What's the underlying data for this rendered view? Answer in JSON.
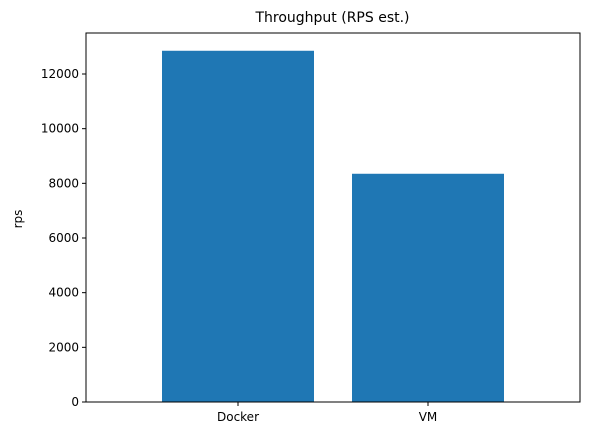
{
  "chart_data": {
    "type": "bar",
    "title": "Throughput (RPS est.)",
    "xlabel": "",
    "ylabel": "rps",
    "categories": [
      "Docker",
      "VM"
    ],
    "values": [
      12850,
      8350
    ],
    "ylim": [
      0,
      13500
    ],
    "yticks": [
      0,
      2000,
      4000,
      6000,
      8000,
      10000,
      12000
    ],
    "bar_color": "#1f77b4",
    "grid": false
  }
}
